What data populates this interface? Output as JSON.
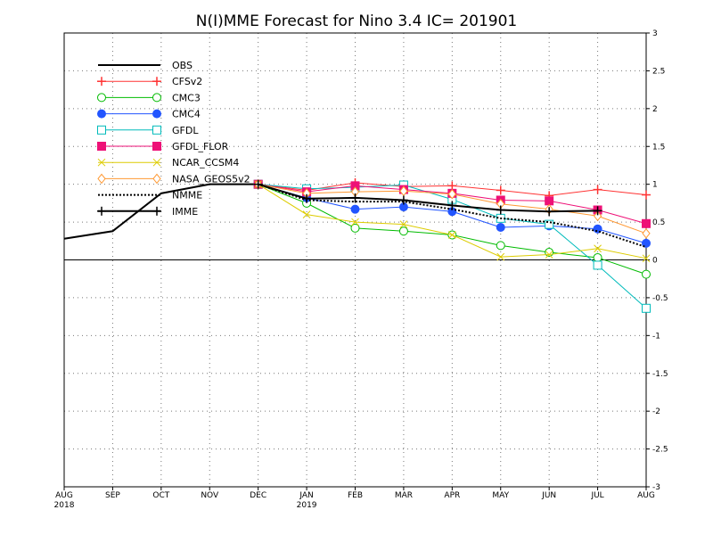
{
  "chart_data": {
    "type": "line",
    "title": "N(I)MME Forecast for Nino 3.4   IC= 201901",
    "xlabel": "",
    "ylabel": "",
    "x_ticks": [
      "AUG",
      "SEP",
      "OCT",
      "NOV",
      "DEC",
      "JAN",
      "FEB",
      "MAR",
      "APR",
      "MAY",
      "JUN",
      "JUL",
      "AUG"
    ],
    "x_year_labels": [
      {
        "index": 0,
        "label": "2018"
      },
      {
        "index": 5,
        "label": "2019"
      }
    ],
    "ylim": [
      -3,
      3
    ],
    "y_ticks": [
      "-3",
      "-2.5",
      "-2",
      "-1.5",
      "-1",
      "-0.5",
      "0",
      "0.5",
      "1",
      "1.5",
      "2",
      "2.5",
      "3"
    ],
    "grid": true,
    "zero_line": true,
    "legend_position": "top-left",
    "series": [
      {
        "name": "OBS",
        "color": "#000000",
        "marker": "none",
        "dash": "solid",
        "width": 2,
        "start": 0,
        "values": [
          0.28,
          0.38,
          0.88,
          1.0,
          1.0
        ]
      },
      {
        "name": "CFSv2",
        "color": "#ff3333",
        "marker": "plus",
        "dash": "solid",
        "width": 1,
        "start": 4,
        "values": [
          1.0,
          0.92,
          1.02,
          0.97,
          0.98,
          0.92,
          0.85,
          0.93,
          0.86
        ]
      },
      {
        "name": "CMC3",
        "color": "#00bb00",
        "marker": "circle",
        "dash": "solid",
        "width": 1,
        "start": 4,
        "values": [
          1.0,
          0.75,
          0.42,
          0.38,
          0.33,
          0.19,
          0.1,
          0.03,
          -0.19
        ]
      },
      {
        "name": "CMC4",
        "color": "#2255ff",
        "marker": "filled-circle",
        "dash": "solid",
        "width": 1,
        "start": 4,
        "values": [
          1.0,
          0.82,
          0.67,
          0.7,
          0.64,
          0.43,
          0.45,
          0.41,
          0.22
        ]
      },
      {
        "name": "GFDL",
        "color": "#00bbbb",
        "marker": "square",
        "dash": "solid",
        "width": 1,
        "start": 4,
        "values": [
          1.0,
          0.94,
          0.96,
          0.99,
          0.8,
          0.55,
          0.47,
          -0.07,
          -0.64
        ]
      },
      {
        "name": "GFDL_FLOR",
        "color": "#ee1177",
        "marker": "filled-square",
        "dash": "solid",
        "width": 1,
        "start": 4,
        "values": [
          1.0,
          0.9,
          0.98,
          0.93,
          0.88,
          0.79,
          0.78,
          0.66,
          0.48
        ]
      },
      {
        "name": "NCAR_CCSM4",
        "color": "#ddcc00",
        "marker": "x",
        "dash": "solid",
        "width": 1,
        "start": 4,
        "values": [
          1.0,
          0.6,
          0.5,
          0.47,
          0.33,
          0.04,
          0.07,
          0.15,
          0.02
        ]
      },
      {
        "name": "NASA_GEOS5v2",
        "color": "#ff9933",
        "marker": "diamond",
        "dash": "solid",
        "width": 1,
        "start": 4,
        "values": [
          1.0,
          0.88,
          0.9,
          0.91,
          0.87,
          0.74,
          0.67,
          0.58,
          0.35
        ]
      },
      {
        "name": "NMME",
        "color": "#000000",
        "marker": "none",
        "dash": "dotted",
        "width": 2,
        "start": 4,
        "values": [
          1.0,
          0.79,
          0.77,
          0.77,
          0.67,
          0.55,
          0.5,
          0.38,
          0.17
        ]
      },
      {
        "name": "IMME",
        "color": "#000000",
        "marker": "plus",
        "dash": "solid",
        "width": 2,
        "start": 4,
        "values": [
          1.0,
          0.81,
          0.82,
          0.79,
          0.72,
          0.66,
          0.64,
          0.65,
          null
        ]
      }
    ]
  }
}
